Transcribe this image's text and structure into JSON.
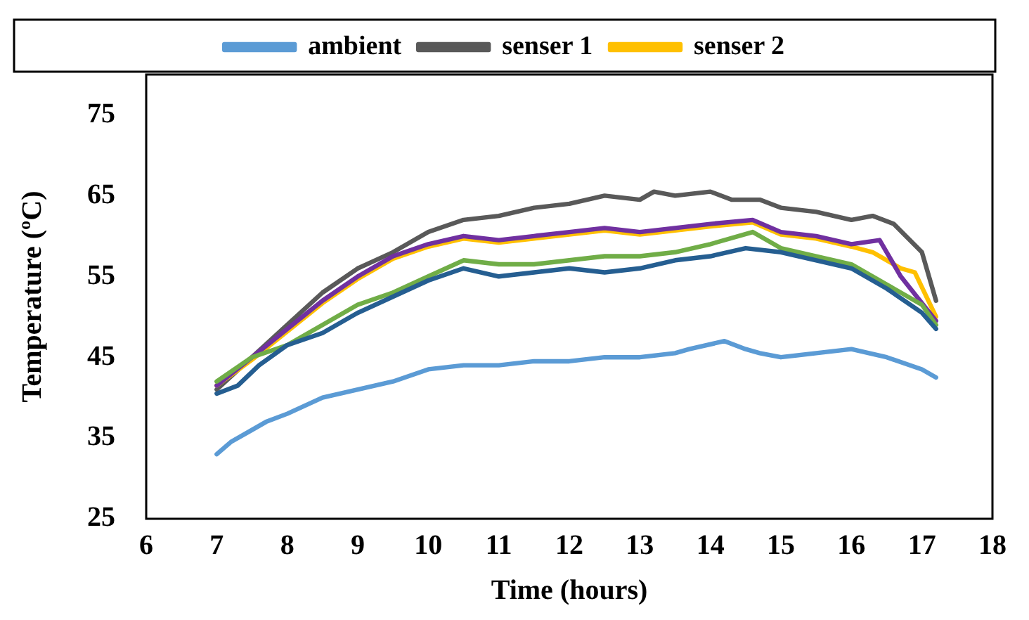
{
  "chart_data": {
    "type": "line",
    "xlabel": "Time (hours)",
    "ylabel": "Temperature (ºC)",
    "xlim": [
      6,
      18
    ],
    "xticks": [
      6,
      7,
      8,
      9,
      10,
      11,
      12,
      13,
      14,
      15,
      16,
      17,
      18
    ],
    "ylim": [
      25,
      80
    ],
    "yticks": [
      25,
      35,
      45,
      55,
      65,
      75
    ],
    "grid": false,
    "legend": "top",
    "marker": "none",
    "line_style": "solid",
    "series": [
      {
        "name": "ambient",
        "color": "#5b9bd5",
        "x": [
          7,
          7.2,
          7.5,
          7.7,
          8,
          8.5,
          9,
          9.5,
          10,
          10.5,
          11,
          11.5,
          12,
          12.5,
          13,
          13.5,
          13.7,
          14.2,
          14.5,
          14.7,
          15,
          15.5,
          16,
          16.5,
          17,
          17.2
        ],
        "values": [
          33,
          34.5,
          36,
          37,
          38,
          40,
          41,
          42,
          43.5,
          44,
          44,
          44.5,
          44.5,
          45,
          45,
          45.5,
          46,
          47,
          46,
          45.5,
          45,
          45.5,
          46,
          45,
          43.5,
          42.5
        ]
      },
      {
        "name": "senser 1",
        "color": "#595959",
        "x": [
          7,
          7.5,
          8,
          8.5,
          9,
          9.5,
          10,
          10.5,
          11,
          11.5,
          12,
          12.5,
          13,
          13.2,
          13.5,
          14,
          14.3,
          14.7,
          15,
          15.5,
          16,
          16.3,
          16.6,
          17,
          17.2
        ],
        "values": [
          41,
          45,
          49,
          53,
          56,
          58,
          60.5,
          62,
          62.5,
          63.5,
          64,
          65,
          64.5,
          65.5,
          65,
          65.5,
          64.5,
          64.5,
          63.5,
          63,
          62,
          62.5,
          61.5,
          58,
          52
        ]
      },
      {
        "name": "senser 2",
        "color": "#ffc000",
        "x": [
          7,
          7.5,
          8,
          8.5,
          9,
          9.5,
          10,
          10.5,
          11,
          11.5,
          12,
          12.5,
          13,
          13.5,
          14,
          14.6,
          15,
          15.5,
          16,
          16.3,
          16.7,
          16.9,
          17.2
        ],
        "values": [
          41.5,
          44.7,
          48.2,
          51.7,
          54.7,
          57.2,
          58.7,
          59.7,
          59.2,
          59.7,
          60.2,
          60.7,
          60.2,
          60.7,
          61.2,
          61.7,
          60.2,
          59.7,
          58.7,
          58,
          56,
          55.5,
          50
        ]
      },
      {
        "color": "#7030a0",
        "x": [
          7,
          7.5,
          8,
          8.5,
          9,
          9.5,
          10,
          10.5,
          11,
          11.5,
          12,
          12.5,
          13,
          13.5,
          14,
          14.6,
          15,
          15.5,
          16,
          16.4,
          16.7,
          17.2
        ],
        "values": [
          41.5,
          45,
          48.5,
          52,
          55,
          57.5,
          59,
          60,
          59.5,
          60,
          60.5,
          61,
          60.5,
          61,
          61.5,
          62,
          60.5,
          60,
          59,
          59.5,
          55,
          49.5
        ]
      },
      {
        "color": "#70ad47",
        "x": [
          7,
          7.5,
          8,
          8.5,
          9,
          9.5,
          10,
          10.5,
          11,
          11.5,
          12,
          12.5,
          13,
          13.5,
          14,
          14.6,
          15,
          15.5,
          16,
          16.5,
          17,
          17.2
        ],
        "values": [
          42,
          45,
          46.5,
          49,
          51.5,
          53,
          55,
          57,
          56.5,
          56.5,
          57,
          57.5,
          57.5,
          58,
          59,
          60.5,
          58.5,
          57.5,
          56.5,
          54,
          51.5,
          49
        ]
      },
      {
        "color": "#255e91",
        "x": [
          7,
          7.3,
          7.6,
          8,
          8.5,
          9,
          9.5,
          10,
          10.5,
          11,
          11.5,
          12,
          12.5,
          13,
          13.5,
          14,
          14.5,
          15,
          15.5,
          16,
          16.5,
          17,
          17.2
        ],
        "values": [
          40.5,
          41.5,
          44,
          46.5,
          48,
          50.5,
          52.5,
          54.5,
          56,
          55,
          55.5,
          56,
          55.5,
          56,
          57,
          57.5,
          58.5,
          58,
          57,
          56,
          53.5,
          50.5,
          48.5
        ]
      }
    ]
  }
}
